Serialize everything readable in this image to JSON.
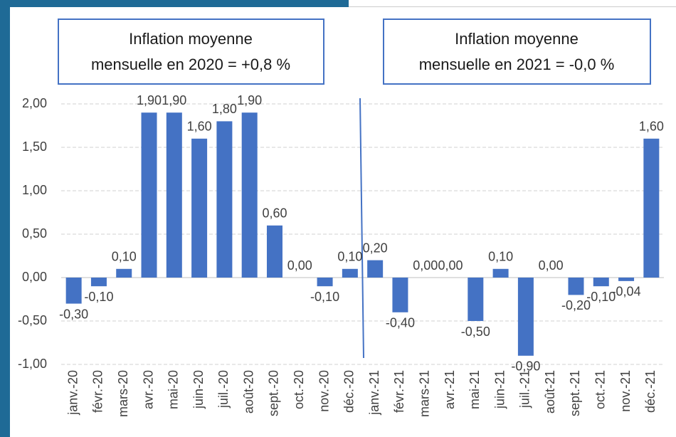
{
  "chart_data": {
    "type": "bar",
    "annotations": [
      {
        "lines": [
          "Inflation moyenne",
          "mensuelle en 2020 = +0,8 %"
        ]
      },
      {
        "lines": [
          "Inflation moyenne",
          "mensuelle en 2021 = -0,0 %"
        ]
      }
    ],
    "categories": [
      "janv.-20",
      "févr.-20",
      "mars-20",
      "avr.-20",
      "mai-20",
      "juin-20",
      "juil.-20",
      "août-20",
      "sept.-20",
      "oct.-20",
      "nov.-20",
      "déc.-20",
      "janv.-21",
      "févr.-21",
      "mars-21",
      "avr.-21",
      "mai-21",
      "juin-21",
      "juil.-21",
      "août-21",
      "sept.-21",
      "oct.-21",
      "nov.-21",
      "déc.-21"
    ],
    "values": [
      -0.3,
      -0.1,
      0.1,
      1.9,
      1.9,
      1.6,
      1.8,
      1.9,
      0.6,
      0.0,
      -0.1,
      0.1,
      0.2,
      -0.4,
      0.0,
      0.0,
      -0.5,
      0.1,
      -0.9,
      0.0,
      -0.2,
      -0.1,
      -0.04,
      1.6
    ],
    "value_labels": [
      "-0,30",
      "-0,10",
      "0,10",
      "1,90",
      "1,90",
      "1,60",
      "1,80",
      "1,90",
      "0,60",
      "0,00",
      "-0,10",
      "0,10",
      "0,20",
      "-0,40",
      "0,00",
      "0,00",
      "-0,50",
      "0,10",
      "-0,90",
      "0,00",
      "-0,20",
      "-0,10",
      "-0,04",
      "1,60"
    ],
    "color": "#4472c4",
    "ylim": [
      -1,
      2.1
    ],
    "yticks": [
      {
        "value": 2,
        "label": "2,00"
      },
      {
        "value": 1.5,
        "label": "1,50"
      },
      {
        "value": 1,
        "label": "1,00"
      },
      {
        "value": 0.5,
        "label": "0,50"
      },
      {
        "value": 0,
        "label": "0,00"
      },
      {
        "value": -0.5,
        "label": "-0,50"
      },
      {
        "value": -1,
        "label": "-1,00"
      }
    ],
    "grid": true
  }
}
